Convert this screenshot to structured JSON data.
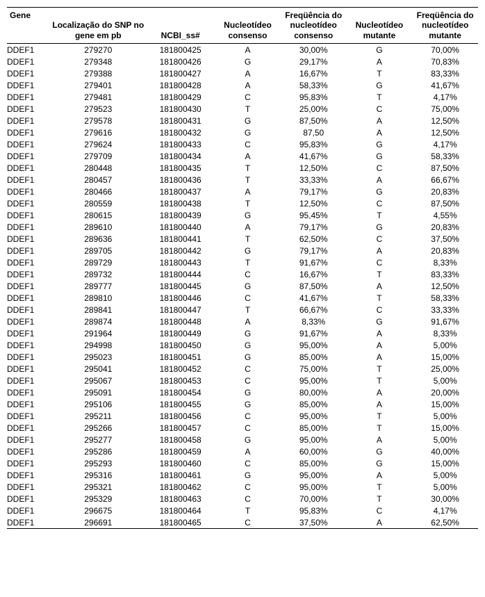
{
  "table": {
    "header": {
      "gene": "Gene",
      "loc": "Localização do SNP no gene em pb",
      "ncbi": "NCBI_ss#",
      "nuc_cons": "Nucleotídeo consenso",
      "freq_cons": "Freqüência do nucleotídeo consenso",
      "nuc_mut": "Nucleotídeo mutante",
      "freq_mut": "Freqüência do nucleotídeo mutante"
    },
    "rows": [
      {
        "gene": "DDEF1",
        "loc": "279270",
        "ncbi": "181800425",
        "nc": "A",
        "fc": "30,00%",
        "nm": "G",
        "fm": "70,00%"
      },
      {
        "gene": "DDEF1",
        "loc": "279348",
        "ncbi": "181800426",
        "nc": "G",
        "fc": "29,17%",
        "nm": "A",
        "fm": "70,83%"
      },
      {
        "gene": "DDEF1",
        "loc": "279388",
        "ncbi": "181800427",
        "nc": "A",
        "fc": "16,67%",
        "nm": "T",
        "fm": "83,33%"
      },
      {
        "gene": "DDEF1",
        "loc": "279401",
        "ncbi": "181800428",
        "nc": "A",
        "fc": "58,33%",
        "nm": "G",
        "fm": "41,67%"
      },
      {
        "gene": "DDEF1",
        "loc": "279481",
        "ncbi": "181800429",
        "nc": "C",
        "fc": "95,83%",
        "nm": "T",
        "fm": "4,17%"
      },
      {
        "gene": "DDEF1",
        "loc": "279523",
        "ncbi": "181800430",
        "nc": "T",
        "fc": "25,00%",
        "nm": "C",
        "fm": "75,00%"
      },
      {
        "gene": "DDEF1",
        "loc": "279578",
        "ncbi": "181800431",
        "nc": "G",
        "fc": "87,50%",
        "nm": "A",
        "fm": "12,50%"
      },
      {
        "gene": "DDEF1",
        "loc": "279616",
        "ncbi": "181800432",
        "nc": "G",
        "fc": "87,50",
        "nm": "A",
        "fm": "12,50%"
      },
      {
        "gene": "DDEF1",
        "loc": "279624",
        "ncbi": "181800433",
        "nc": "C",
        "fc": "95,83%",
        "nm": "G",
        "fm": "4,17%"
      },
      {
        "gene": "DDEF1",
        "loc": "279709",
        "ncbi": "181800434",
        "nc": "A",
        "fc": "41,67%",
        "nm": "G",
        "fm": "58,33%"
      },
      {
        "gene": "DDEF1",
        "loc": "280448",
        "ncbi": "181800435",
        "nc": "T",
        "fc": "12,50%",
        "nm": "C",
        "fm": "87,50%"
      },
      {
        "gene": "DDEF1",
        "loc": "280457",
        "ncbi": "181800436",
        "nc": "T",
        "fc": "33,33%",
        "nm": "A",
        "fm": "66,67%"
      },
      {
        "gene": "DDEF1",
        "loc": "280466",
        "ncbi": "181800437",
        "nc": "A",
        "fc": "79,17%",
        "nm": "G",
        "fm": "20,83%"
      },
      {
        "gene": "DDEF1",
        "loc": "280559",
        "ncbi": "181800438",
        "nc": "T",
        "fc": "12,50%",
        "nm": "C",
        "fm": "87,50%"
      },
      {
        "gene": "DDEF1",
        "loc": "280615",
        "ncbi": "181800439",
        "nc": "G",
        "fc": "95,45%",
        "nm": "T",
        "fm": "4,55%"
      },
      {
        "gene": "DDEF1",
        "loc": "289610",
        "ncbi": "181800440",
        "nc": "A",
        "fc": "79,17%",
        "nm": "G",
        "fm": "20,83%"
      },
      {
        "gene": "DDEF1",
        "loc": "289636",
        "ncbi": "181800441",
        "nc": "T",
        "fc": "62,50%",
        "nm": "C",
        "fm": "37,50%"
      },
      {
        "gene": "DDEF1",
        "loc": "289705",
        "ncbi": "181800442",
        "nc": "G",
        "fc": "79,17%",
        "nm": "A",
        "fm": "20,83%"
      },
      {
        "gene": "DDEF1",
        "loc": "289729",
        "ncbi": "181800443",
        "nc": "T",
        "fc": "91,67%",
        "nm": "C",
        "fm": "8,33%"
      },
      {
        "gene": "DDEF1",
        "loc": "289732",
        "ncbi": "181800444",
        "nc": "C",
        "fc": "16,67%",
        "nm": "T",
        "fm": "83,33%"
      },
      {
        "gene": "DDEF1",
        "loc": "289777",
        "ncbi": "181800445",
        "nc": "G",
        "fc": "87,50%",
        "nm": "A",
        "fm": "12,50%"
      },
      {
        "gene": "DDEF1",
        "loc": "289810",
        "ncbi": "181800446",
        "nc": "C",
        "fc": "41,67%",
        "nm": "T",
        "fm": "58,33%"
      },
      {
        "gene": "DDEF1",
        "loc": "289841",
        "ncbi": "181800447",
        "nc": "T",
        "fc": "66,67%",
        "nm": "C",
        "fm": "33,33%"
      },
      {
        "gene": "DDEF1",
        "loc": "289874",
        "ncbi": "181800448",
        "nc": "A",
        "fc": "8,33%",
        "nm": "G",
        "fm": "91,67%"
      },
      {
        "gene": "DDEF1",
        "loc": "291964",
        "ncbi": "181800449",
        "nc": "G",
        "fc": "91,67%",
        "nm": "A",
        "fm": "8,33%"
      },
      {
        "gene": "DDEF1",
        "loc": "294998",
        "ncbi": "181800450",
        "nc": "G",
        "fc": "95,00%",
        "nm": "A",
        "fm": "5,00%"
      },
      {
        "gene": "DDEF1",
        "loc": "295023",
        "ncbi": "181800451",
        "nc": "G",
        "fc": "85,00%",
        "nm": "A",
        "fm": "15,00%"
      },
      {
        "gene": "DDEF1",
        "loc": "295041",
        "ncbi": "181800452",
        "nc": "C",
        "fc": "75,00%",
        "nm": "T",
        "fm": "25,00%"
      },
      {
        "gene": "DDEF1",
        "loc": "295067",
        "ncbi": "181800453",
        "nc": "C",
        "fc": "95,00%",
        "nm": "T",
        "fm": "5,00%"
      },
      {
        "gene": "DDEF1",
        "loc": "295091",
        "ncbi": "181800454",
        "nc": "G",
        "fc": "80,00%",
        "nm": "A",
        "fm": "20,00%"
      },
      {
        "gene": "DDEF1",
        "loc": "295106",
        "ncbi": "181800455",
        "nc": "G",
        "fc": "85,00%",
        "nm": "A",
        "fm": "15,00%"
      },
      {
        "gene": "DDEF1",
        "loc": "295211",
        "ncbi": "181800456",
        "nc": "C",
        "fc": "95,00%",
        "nm": "T",
        "fm": "5,00%"
      },
      {
        "gene": "DDEF1",
        "loc": "295266",
        "ncbi": "181800457",
        "nc": "C",
        "fc": "85,00%",
        "nm": "T",
        "fm": "15,00%"
      },
      {
        "gene": "DDEF1",
        "loc": "295277",
        "ncbi": "181800458",
        "nc": "G",
        "fc": "95,00%",
        "nm": "A",
        "fm": "5,00%"
      },
      {
        "gene": "DDEF1",
        "loc": "295286",
        "ncbi": "181800459",
        "nc": "A",
        "fc": "60,00%",
        "nm": "G",
        "fm": "40,00%"
      },
      {
        "gene": "DDEF1",
        "loc": "295293",
        "ncbi": "181800460",
        "nc": "C",
        "fc": "85,00%",
        "nm": "G",
        "fm": "15,00%"
      },
      {
        "gene": "DDEF1",
        "loc": "295316",
        "ncbi": "181800461",
        "nc": "G",
        "fc": "95,00%",
        "nm": "A",
        "fm": "5,00%"
      },
      {
        "gene": "DDEF1",
        "loc": "295321",
        "ncbi": "181800462",
        "nc": "C",
        "fc": "95,00%",
        "nm": "T",
        "fm": "5,00%"
      },
      {
        "gene": "DDEF1",
        "loc": "295329",
        "ncbi": "181800463",
        "nc": "C",
        "fc": "70,00%",
        "nm": "T",
        "fm": "30,00%"
      },
      {
        "gene": "DDEF1",
        "loc": "296675",
        "ncbi": "181800464",
        "nc": "T",
        "fc": "95,83%",
        "nm": "C",
        "fm": "4,17%"
      },
      {
        "gene": "DDEF1",
        "loc": "296691",
        "ncbi": "181800465",
        "nc": "C",
        "fc": "37,50%",
        "nm": "A",
        "fm": "62,50%"
      }
    ]
  }
}
